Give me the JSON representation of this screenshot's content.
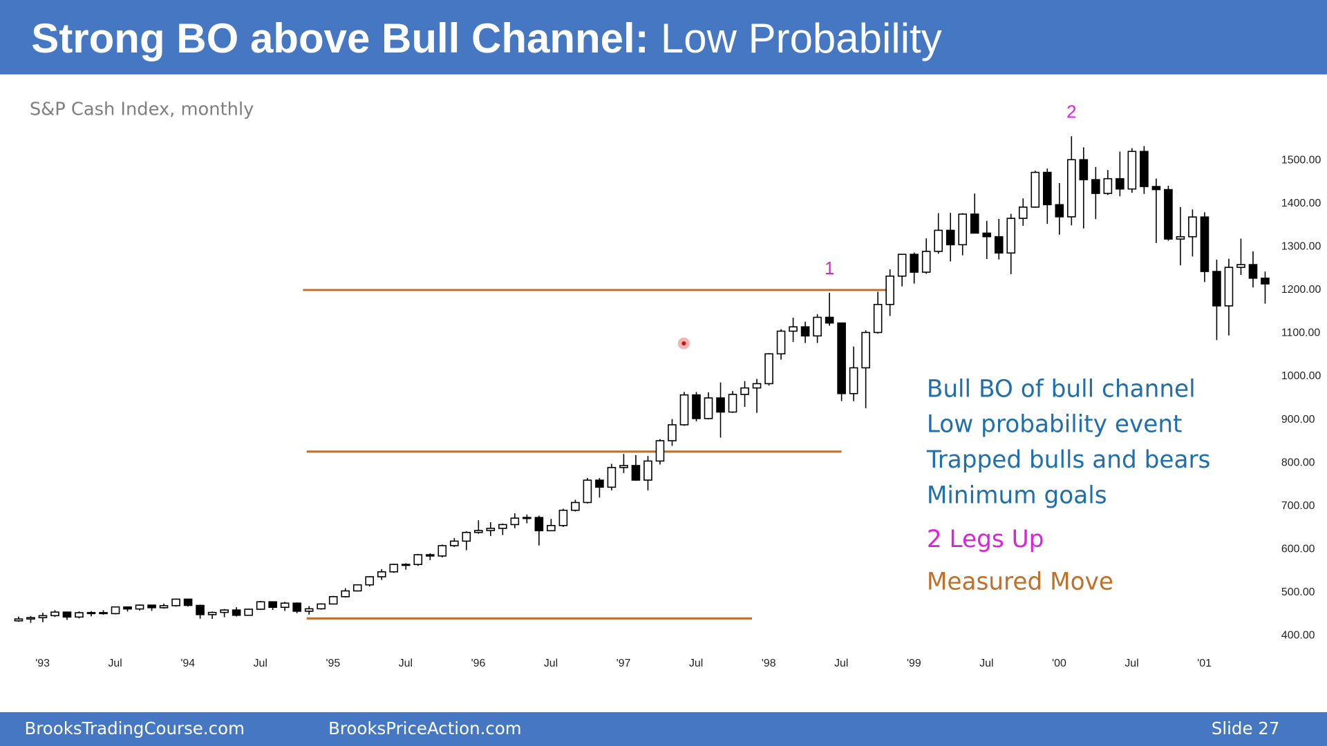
{
  "header": {
    "title_main": "Strong BO above Bull Channel:",
    "title_rest": "Low Probability"
  },
  "footer": {
    "left": "BrooksTradingCourse.com",
    "middle": "BrooksPriceAction.com",
    "slide": "Slide  27"
  },
  "chart_data": {
    "type": "candlestick",
    "subtitle": "S&P Cash Index, monthly",
    "categories": [
      null,
      "'93",
      null,
      null,
      null,
      null,
      null,
      "Jul",
      null,
      null,
      null,
      null,
      null,
      "'94",
      null,
      null,
      null,
      null,
      null,
      "Jul",
      null,
      null,
      null,
      null,
      null,
      "'95",
      null,
      null,
      null,
      null,
      null,
      "Jul",
      null,
      null,
      null,
      null,
      null,
      "'96",
      null,
      null,
      null,
      null,
      null,
      "Jul",
      null,
      null,
      null,
      null,
      null,
      "'97",
      null,
      null,
      null,
      null,
      null,
      "Jul",
      null,
      null,
      null,
      null,
      null,
      "'98",
      null,
      null,
      null,
      null,
      null,
      "Jul",
      null,
      null,
      null,
      null,
      null,
      "'99",
      null,
      null,
      null,
      null,
      null,
      "Jul",
      null,
      null,
      null,
      null,
      null,
      "'00",
      null,
      null,
      null,
      null,
      null,
      "Jul",
      null,
      null,
      null,
      null,
      null,
      "'01",
      null,
      null,
      null,
      null,
      null,
      null
    ],
    "open": [
      431.4,
      435.7,
      438.8,
      443.4,
      451.7,
      440.2,
      450.2,
      450.5,
      448.1,
      463.6,
      458.9,
      467.8,
      461.8,
      466.5,
      481.6,
      467.1,
      445.8,
      450.9,
      456.5,
      444.3,
      458.3,
      475.5,
      462.7,
      472.4,
      453.7,
      459.3,
      470.4,
      487.4,
      500.7,
      514.7,
      533.4,
      544.8,
      562.1,
      561.9,
      584.4,
      581.5,
      605.4,
      615.9,
      636.0,
      640.4,
      645.5,
      654.2,
      669.1,
      670.6,
      640.0,
      652.0,
      687.3,
      705.3,
      757.0,
      740.7,
      786.2,
      790.8,
      757.1,
      801.3,
      848.3,
      885.1,
      954.3,
      899.5,
      947.3,
      914.6,
      955.4,
      970.4,
      980.3,
      1049.3,
      1101.8,
      1111.8,
      1090.8,
      1133.8,
      1120.7,
      957.3,
      1017.0,
      1098.7,
      1163.6,
      1229.2,
      1279.6,
      1238.3,
      1286.4,
      1335.2,
      1301.8,
      1372.7,
      1328.7,
      1320.4,
      1282.7,
      1362.9,
      1388.9,
      1469.3,
      1394.5,
      1366.4,
      1498.6,
      1452.4,
      1420.6,
      1454.6,
      1430.8,
      1517.7,
      1436.5,
      1429.4,
      1315.0,
      1320.3,
      1366.0,
      1239.9,
      1160.3,
      1249.5,
      1255.8,
      1224.4
    ],
    "high": [
      441.3,
      442.7,
      450.2,
      456.4,
      452.1,
      453.5,
      453.9,
      456.1,
      464.5,
      463.9,
      469.5,
      468.6,
      471.3,
      482.9,
      482.4,
      469.0,
      453.0,
      458.7,
      462.8,
      459.3,
      477.4,
      476.6,
      475.1,
      474.0,
      465.5,
      472.1,
      489.2,
      507.0,
      515.0,
      535.0,
      551.1,
      563.8,
      564.7,
      586.0,
      587.8,
      608.0,
      622.9,
      638.5,
      664.2,
      659.6,
      656.8,
      680.3,
      677.6,
      675.0,
      667.3,
      690.9,
      711.6,
      762.1,
      761.8,
      794.7,
      817.7,
      814.9,
      812.9,
      851.9,
      898.7,
      961.1,
      961.1,
      960.3,
      983.1,
      963.1,
      986.3,
      991.3,
      1051.0,
      1106.3,
      1133.0,
      1123.6,
      1141.2,
      1190.6,
      1121.7,
      1066.1,
      1103.8,
      1193.0,
      1244.9,
      1280.4,
      1283.8,
      1316.6,
      1375.0,
      1375.6,
      1375.0,
      1420.3,
      1357.2,
      1361.4,
      1373.2,
      1409.0,
      1473.1,
      1478.0,
      1444.6,
      1552.9,
      1527.2,
      1481.5,
      1474.6,
      1517.3,
      1525.2,
      1530.1,
      1454.8,
      1438.5,
      1389.1,
      1383.4,
      1376.9,
      1267.4,
      1269.3,
      1315.9,
      1286.6,
      1239.8
    ],
    "low": [
      429.3,
      426.9,
      428.3,
      440.4,
      433.5,
      436.9,
      441.7,
      445.5,
      446.3,
      452.9,
      455.3,
      454.4,
      459.8,
      464.5,
      464.4,
      436.2,
      435.9,
      439.8,
      441.5,
      443.4,
      456.6,
      456.6,
      454.4,
      449.1,
      445.9,
      457.2,
      469.3,
      485.4,
      499.2,
      510.7,
      526.0,
      542.5,
      549.9,
      558.3,
      571.9,
      578.1,
      602.3,
      594.9,
      633.0,
      627.6,
      630.0,
      645.6,
      657.2,
      605.9,
      639.6,
      648.6,
      684.5,
      703.0,
      716.7,
      733.4,
      773.4,
      755.4,
      733.5,
      793.2,
      836.3,
      882.8,
      893.0,
      897.6,
      855.3,
      912.6,
      926.6,
      912.8,
      976.0,
      1036.0,
      1076.7,
      1074.4,
      1074.5,
      1114.3,
      939.9,
      939.8,
      923.3,
      1096.0,
      1136.9,
      1205.5,
      1211.9,
      1234.6,
      1280.7,
      1263.1,
      1277.3,
      1328.7,
      1268.7,
      1267.7,
      1233.7,
      1345.6,
      1387.4,
      1350.1,
      1325.1,
      1346.6,
      1339.4,
      1361.1,
      1416.9,
      1413.9,
      1422.1,
      1419.4,
      1305.8,
      1311.0,
      1254.1,
      1274.6,
      1215.4,
      1081.2,
      1091.9,
      1232.0,
      1203.0,
      1165.5
    ],
    "close": [
      435.7,
      438.8,
      443.4,
      451.7,
      440.2,
      450.2,
      450.5,
      448.1,
      463.6,
      458.9,
      467.8,
      461.8,
      466.5,
      481.6,
      467.1,
      445.8,
      450.9,
      456.5,
      444.3,
      458.3,
      475.5,
      462.7,
      472.4,
      453.7,
      459.3,
      470.4,
      487.4,
      500.7,
      514.7,
      533.4,
      544.8,
      562.1,
      561.9,
      584.4,
      581.5,
      605.4,
      615.9,
      636.0,
      640.4,
      645.5,
      654.2,
      669.1,
      670.6,
      640.0,
      652.0,
      687.3,
      705.3,
      757.0,
      740.7,
      786.2,
      790.8,
      757.1,
      801.3,
      848.3,
      885.1,
      954.3,
      899.5,
      947.3,
      914.6,
      955.4,
      970.4,
      980.3,
      1049.3,
      1101.8,
      1111.8,
      1090.8,
      1133.8,
      1120.7,
      957.3,
      1017.0,
      1098.7,
      1163.6,
      1229.2,
      1279.6,
      1238.3,
      1286.4,
      1335.2,
      1301.8,
      1372.7,
      1328.7,
      1320.4,
      1282.7,
      1362.9,
      1388.9,
      1469.3,
      1394.5,
      1366.4,
      1498.6,
      1452.4,
      1420.6,
      1454.6,
      1430.8,
      1517.7,
      1436.5,
      1429.4,
      1315.0,
      1320.3,
      1366.0,
      1239.9,
      1160.3,
      1249.5,
      1255.8,
      1224.4,
      1211.2
    ],
    "up_color": "#ffffff",
    "down_color": "#000000",
    "ylim": [
      361,
      1555
    ],
    "yticks": [
      {
        "value": 400,
        "label": "400.00"
      },
      {
        "value": 500,
        "label": "500.00"
      },
      {
        "value": 600,
        "label": "600.00"
      },
      {
        "value": 700,
        "label": "700.00"
      },
      {
        "value": 800,
        "label": "800.00"
      },
      {
        "value": 900,
        "label": "900.00"
      },
      {
        "value": 1000,
        "label": "1000.00"
      },
      {
        "value": 1100,
        "label": "1100.00"
      },
      {
        "value": 1200,
        "label": "1200.00"
      },
      {
        "value": 1300,
        "label": "1300.00"
      },
      {
        "value": 1400,
        "label": "1400.00"
      },
      {
        "value": 1500,
        "label": "1500.00"
      }
    ],
    "hlines": [
      {
        "value": 1197,
        "x_range": [
          23.5,
          72.3
        ],
        "color": "#c0702a"
      },
      {
        "value": 823,
        "x_range": [
          23.8,
          68.0
        ],
        "color": "#c0702a"
      },
      {
        "value": 437,
        "x_range": [
          23.8,
          60.6
        ],
        "color": "#c0702a"
      }
    ],
    "annotations": [
      {
        "text": "1",
        "index": 67,
        "color": "#e020e0"
      },
      {
        "text": "2",
        "index": 87,
        "color": "#e020e0"
      }
    ],
    "notes": [
      {
        "text": "Bull BO of bull channel",
        "color": "#1f6fae"
      },
      {
        "text": "Low probability event",
        "color": "#1f6fae"
      },
      {
        "text": "Trapped bulls and bears",
        "color": "#1f6fae"
      },
      {
        "text": "Minimum goals",
        "color": "#1f6fae"
      },
      {
        "text": "2 Legs Up",
        "color": "#e020e0"
      },
      {
        "text": "Measured Move",
        "color": "#c0702a"
      }
    ]
  }
}
